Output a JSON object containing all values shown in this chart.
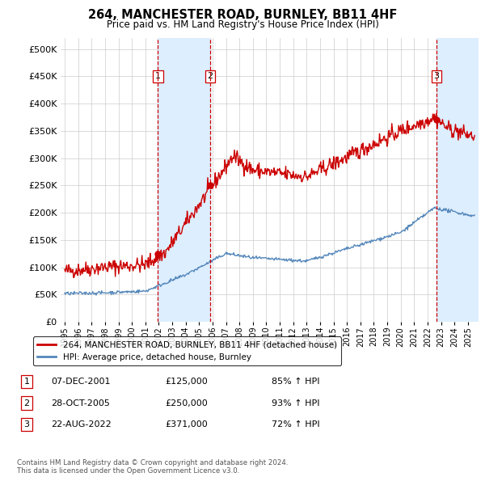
{
  "title": "264, MANCHESTER ROAD, BURNLEY, BB11 4HF",
  "subtitle": "Price paid vs. HM Land Registry's House Price Index (HPI)",
  "ylabel_ticks": [
    "£0",
    "£50K",
    "£100K",
    "£150K",
    "£200K",
    "£250K",
    "£300K",
    "£350K",
    "£400K",
    "£450K",
    "£500K"
  ],
  "ytick_vals": [
    0,
    50000,
    100000,
    150000,
    200000,
    250000,
    300000,
    350000,
    400000,
    450000,
    500000
  ],
  "ylim": [
    0,
    520000
  ],
  "xlim_start": 1994.7,
  "xlim_end": 2025.8,
  "red_line_color": "#cc0000",
  "blue_line_color": "#5588bb",
  "sale_color": "#cc0000",
  "sales": [
    {
      "label": 1,
      "date_num": 2001.93,
      "price": 125000
    },
    {
      "label": 2,
      "date_num": 2005.83,
      "price": 250000
    },
    {
      "label": 3,
      "date_num": 2022.65,
      "price": 371000
    }
  ],
  "vline_color": "#cc0000",
  "shade_color": "#ddeeff",
  "legend_red_label": "264, MANCHESTER ROAD, BURNLEY, BB11 4HF (detached house)",
  "legend_blue_label": "HPI: Average price, detached house, Burnley",
  "table_rows": [
    {
      "num": 1,
      "date": "07-DEC-2001",
      "price": "£125,000",
      "hpi": "85% ↑ HPI"
    },
    {
      "num": 2,
      "date": "28-OCT-2005",
      "price": "£250,000",
      "hpi": "93% ↑ HPI"
    },
    {
      "num": 3,
      "date": "22-AUG-2022",
      "price": "£371,000",
      "hpi": "72% ↑ HPI"
    }
  ],
  "footnote": "Contains HM Land Registry data © Crown copyright and database right 2024.\nThis data is licensed under the Open Government Licence v3.0.",
  "xtick_years": [
    1995,
    1996,
    1997,
    1998,
    1999,
    2000,
    2001,
    2002,
    2003,
    2004,
    2005,
    2006,
    2007,
    2008,
    2009,
    2010,
    2011,
    2012,
    2013,
    2014,
    2015,
    2016,
    2017,
    2018,
    2019,
    2020,
    2021,
    2022,
    2023,
    2024,
    2025
  ]
}
